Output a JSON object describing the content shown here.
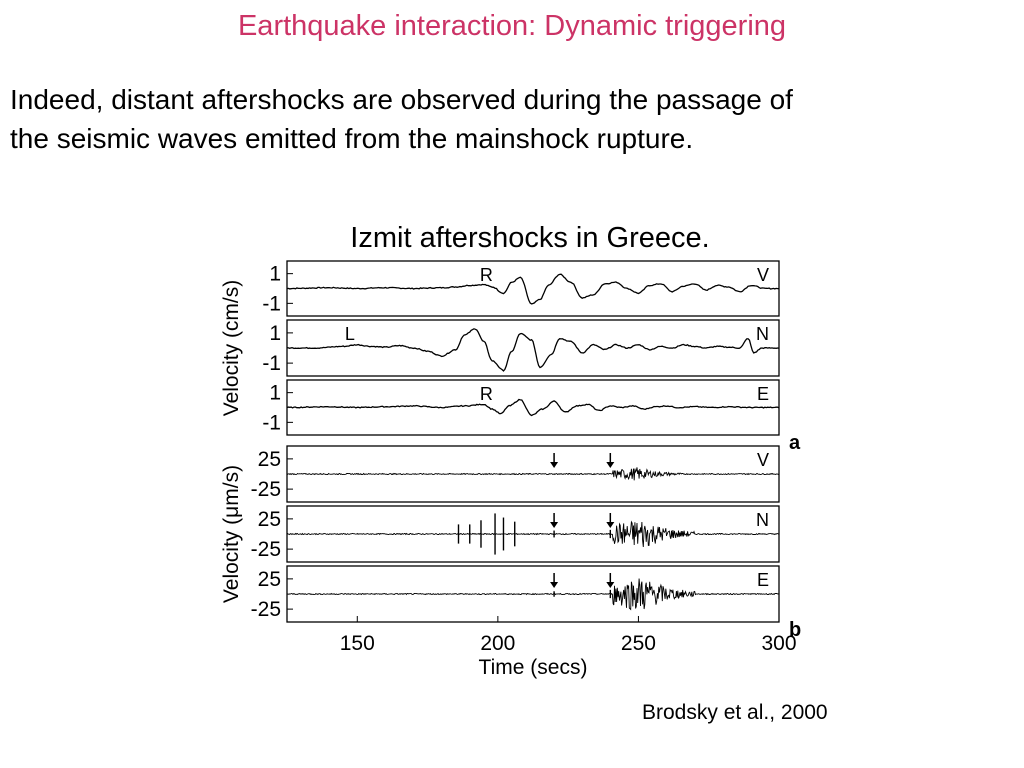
{
  "slide": {
    "title": "Earthquake interaction: Dynamic triggering",
    "title_color": "#cc3366",
    "body_line1": "Indeed, distant aftershocks are observed during the passage of",
    "body_line2": "the seismic waves emitted from the mainshock rupture.",
    "caption": "Izmit aftershocks in Greece.",
    "citation": "Brodsky et al., 2000"
  },
  "chart_data": {
    "type": "line",
    "xlabel": "Time (secs)",
    "x_ticks": [
      "150",
      "200",
      "250",
      "300"
    ],
    "xlim": [
      125,
      300
    ],
    "panels": [
      {
        "id": "a",
        "label": "a",
        "ylabel": "Velocity (cm/s)",
        "y_ticks": [
          "1",
          "-1"
        ],
        "ylim": [
          -1.5,
          1.5
        ],
        "traces": [
          {
            "component": "V",
            "phase_label": "R",
            "phase_time": 200,
            "samples": [
              [
                125,
                0.0
              ],
              [
                140,
                0.05
              ],
              [
                150,
                0.0
              ],
              [
                160,
                0.05
              ],
              [
                170,
                0.0
              ],
              [
                180,
                0.05
              ],
              [
                185,
                0.1
              ],
              [
                190,
                0.2
              ],
              [
                195,
                0.25
              ],
              [
                198,
                0.1
              ],
              [
                202,
                -0.3
              ],
              [
                205,
                0.4
              ],
              [
                208,
                0.7
              ],
              [
                212,
                -1.0
              ],
              [
                215,
                -0.7
              ],
              [
                218,
                0.2
              ],
              [
                222,
                0.9
              ],
              [
                226,
                0.4
              ],
              [
                230,
                -0.6
              ],
              [
                234,
                -0.4
              ],
              [
                238,
                0.3
              ],
              [
                242,
                0.4
              ],
              [
                246,
                0.0
              ],
              [
                250,
                -0.3
              ],
              [
                254,
                0.2
              ],
              [
                258,
                0.3
              ],
              [
                262,
                -0.2
              ],
              [
                266,
                0.15
              ],
              [
                270,
                0.3
              ],
              [
                274,
                -0.1
              ],
              [
                278,
                0.2
              ],
              [
                282,
                0.1
              ],
              [
                286,
                -0.2
              ],
              [
                290,
                0.2
              ],
              [
                295,
                0.0
              ],
              [
                300,
                0.0
              ]
            ]
          },
          {
            "component": "N",
            "phase_label": "L",
            "phase_time": 152,
            "samples": [
              [
                125,
                0.0
              ],
              [
                135,
                0.0
              ],
              [
                145,
                0.1
              ],
              [
                150,
                0.2
              ],
              [
                155,
                0.1
              ],
              [
                160,
                0.05
              ],
              [
                165,
                0.15
              ],
              [
                170,
                0.0
              ],
              [
                175,
                -0.2
              ],
              [
                180,
                -0.5
              ],
              [
                185,
                -0.1
              ],
              [
                188,
                0.8
              ],
              [
                192,
                1.2
              ],
              [
                195,
                0.4
              ],
              [
                198,
                -0.8
              ],
              [
                202,
                -1.4
              ],
              [
                205,
                -0.2
              ],
              [
                208,
                0.9
              ],
              [
                212,
                0.5
              ],
              [
                215,
                -1.2
              ],
              [
                219,
                -0.4
              ],
              [
                222,
                0.6
              ],
              [
                226,
                0.4
              ],
              [
                230,
                -0.3
              ],
              [
                234,
                0.2
              ],
              [
                238,
                -0.1
              ],
              [
                242,
                0.2
              ],
              [
                246,
                0.0
              ],
              [
                250,
                0.2
              ],
              [
                254,
                -0.1
              ],
              [
                258,
                0.1
              ],
              [
                262,
                0.0
              ],
              [
                266,
                0.2
              ],
              [
                270,
                0.1
              ],
              [
                274,
                0.0
              ],
              [
                278,
                0.1
              ],
              [
                282,
                0.05
              ],
              [
                286,
                0.0
              ],
              [
                289,
                0.6
              ],
              [
                291,
                -0.3
              ],
              [
                294,
                0.0
              ],
              [
                300,
                0.0
              ]
            ]
          },
          {
            "component": "E",
            "phase_label": "R",
            "phase_time": 200,
            "samples": [
              [
                125,
                0.0
              ],
              [
                140,
                0.05
              ],
              [
                150,
                0.0
              ],
              [
                160,
                0.05
              ],
              [
                170,
                0.1
              ],
              [
                180,
                0.0
              ],
              [
                188,
                0.1
              ],
              [
                195,
                0.2
              ],
              [
                198,
                -0.1
              ],
              [
                201,
                -0.4
              ],
              [
                204,
                0.1
              ],
              [
                208,
                0.5
              ],
              [
                212,
                -0.5
              ],
              [
                216,
                -0.1
              ],
              [
                220,
                0.4
              ],
              [
                224,
                -0.3
              ],
              [
                228,
                0.1
              ],
              [
                232,
                0.2
              ],
              [
                236,
                -0.2
              ],
              [
                240,
                0.1
              ],
              [
                244,
                0.0
              ],
              [
                248,
                0.1
              ],
              [
                252,
                -0.1
              ],
              [
                256,
                0.05
              ],
              [
                260,
                0.1
              ],
              [
                264,
                0.0
              ],
              [
                270,
                0.05
              ],
              [
                276,
                0.0
              ],
              [
                282,
                0.05
              ],
              [
                290,
                0.0
              ],
              [
                300,
                0.0
              ]
            ]
          }
        ]
      },
      {
        "id": "b",
        "label": "b",
        "ylabel": "Velocity (μm/s)",
        "y_ticks": [
          "25",
          "-25"
        ],
        "ylim": [
          -35,
          35
        ],
        "traces": [
          {
            "component": "V",
            "arrival_arrows": [
              220,
              240
            ],
            "spikes": [],
            "bursts": [
              {
                "start": 241,
                "end": 265,
                "peak": 10
              }
            ]
          },
          {
            "component": "N",
            "arrival_arrows": [
              220,
              240
            ],
            "spikes": [
              {
                "t": 186,
                "amp": 14
              },
              {
                "t": 190,
                "amp": 14
              },
              {
                "t": 194,
                "amp": 20
              },
              {
                "t": 199,
                "amp": 30
              },
              {
                "t": 202,
                "amp": 24
              },
              {
                "t": 206,
                "amp": 18
              },
              {
                "t": 220,
                "amp": 5
              },
              {
                "t": 240,
                "amp": 6
              }
            ],
            "bursts": [
              {
                "start": 241,
                "end": 270,
                "peak": 24
              }
            ]
          },
          {
            "component": "E",
            "arrival_arrows": [
              220,
              240
            ],
            "spikes": [
              {
                "t": 220,
                "amp": 4
              },
              {
                "t": 240,
                "amp": 6
              }
            ],
            "bursts": [
              {
                "start": 241,
                "end": 270,
                "peak": 28
              }
            ]
          }
        ]
      }
    ]
  }
}
